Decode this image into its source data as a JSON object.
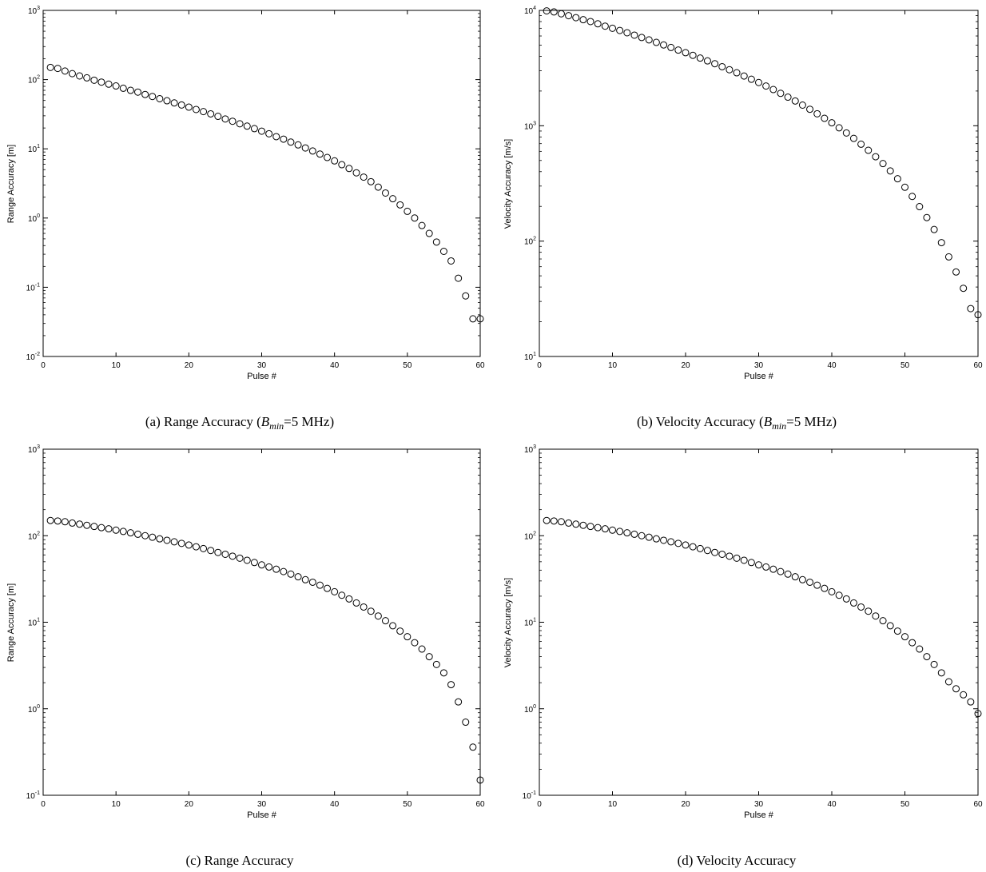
{
  "chart_data": [
    {
      "type": "scatter",
      "caption": "(a) Range Accuracy (",
      "caption_var": "B",
      "caption_sub": "min",
      "caption_tail": "=5 MHz)",
      "xlabel": "Pulse #",
      "ylabel": "Range Accuracy [m]",
      "xlim": [
        0,
        60
      ],
      "ylim": [
        0.01,
        1000
      ],
      "yscale": "log",
      "grid": false,
      "x_ticks": [
        "0",
        "10",
        "20",
        "30",
        "40",
        "50",
        "60"
      ],
      "y_ticks": [
        {
          "base": "10",
          "exp": "-2"
        },
        {
          "base": "10",
          "exp": "-1"
        },
        {
          "base": "10",
          "exp": "0"
        },
        {
          "base": "10",
          "exp": "1"
        },
        {
          "base": "10",
          "exp": "2"
        },
        {
          "base": "10",
          "exp": "3"
        }
      ],
      "marker": "open-circle",
      "x": [
        1,
        2,
        3,
        4,
        5,
        6,
        7,
        8,
        9,
        10,
        11,
        12,
        13,
        14,
        15,
        16,
        17,
        18,
        19,
        20,
        21,
        22,
        23,
        24,
        25,
        26,
        27,
        28,
        29,
        30,
        31,
        32,
        33,
        34,
        35,
        36,
        37,
        38,
        39,
        40,
        41,
        42,
        43,
        44,
        45,
        46,
        47,
        48,
        49,
        50,
        51,
        52,
        53,
        54,
        55,
        56,
        57,
        58,
        59,
        60
      ],
      "y": [
        150,
        145,
        133,
        122,
        113,
        106,
        98,
        92,
        86,
        81,
        75,
        70,
        66,
        61,
        57,
        53,
        49.5,
        46,
        43,
        40,
        37,
        34.5,
        32,
        29.5,
        27,
        25,
        23,
        21.3,
        19.6,
        18,
        16.5,
        15,
        13.8,
        12.5,
        11.4,
        10.3,
        9.3,
        8.4,
        7.5,
        6.7,
        5.9,
        5.2,
        4.5,
        3.9,
        3.35,
        2.8,
        2.3,
        1.9,
        1.55,
        1.25,
        1.0,
        0.78,
        0.6,
        0.45,
        0.33,
        0.24,
        0.135,
        0.075,
        0.035,
        0.035
      ]
    },
    {
      "type": "scatter",
      "caption": "(b) Velocity Accuracy (",
      "caption_var": "B",
      "caption_sub": "min",
      "caption_tail": "=5 MHz)",
      "xlabel": "Pulse #",
      "ylabel": "Velocity Accuracy [m/s]",
      "xlim": [
        0,
        60
      ],
      "ylim": [
        10,
        10000
      ],
      "yscale": "log",
      "grid": false,
      "x_ticks": [
        "0",
        "10",
        "20",
        "30",
        "40",
        "50",
        "60"
      ],
      "y_ticks": [
        {
          "base": "10",
          "exp": "1"
        },
        {
          "base": "10",
          "exp": "2"
        },
        {
          "base": "10",
          "exp": "3"
        },
        {
          "base": "10",
          "exp": "4"
        }
      ],
      "marker": "open-circle",
      "x": [
        1,
        2,
        3,
        4,
        5,
        6,
        7,
        8,
        9,
        10,
        11,
        12,
        13,
        14,
        15,
        16,
        17,
        18,
        19,
        20,
        21,
        22,
        23,
        24,
        25,
        26,
        27,
        28,
        29,
        30,
        31,
        32,
        33,
        34,
        35,
        36,
        37,
        38,
        39,
        40,
        41,
        42,
        43,
        44,
        45,
        46,
        47,
        48,
        49,
        50,
        51,
        52,
        53,
        54,
        55,
        56,
        57,
        58,
        59,
        60
      ],
      "y": [
        9900,
        9700,
        9350,
        9000,
        8650,
        8300,
        8000,
        7650,
        7300,
        7000,
        6700,
        6400,
        6100,
        5820,
        5550,
        5280,
        5020,
        4770,
        4530,
        4300,
        4080,
        3860,
        3650,
        3450,
        3250,
        3060,
        2880,
        2700,
        2530,
        2370,
        2210,
        2060,
        1910,
        1770,
        1640,
        1510,
        1390,
        1270,
        1160,
        1060,
        960,
        866,
        777,
        692,
        613,
        539,
        470,
        406,
        347,
        293,
        244,
        199,
        160,
        126,
        97,
        73,
        54,
        39,
        26,
        23
      ]
    },
    {
      "type": "scatter",
      "caption": "(c) Range Accuracy",
      "xlabel": "Pulse #",
      "ylabel": "Range Accuracy [m]",
      "xlim": [
        0,
        60
      ],
      "ylim": [
        0.1,
        1000
      ],
      "yscale": "log",
      "grid": false,
      "x_ticks": [
        "0",
        "10",
        "20",
        "30",
        "40",
        "50",
        "60"
      ],
      "y_ticks": [
        {
          "base": "10",
          "exp": "-1"
        },
        {
          "base": "10",
          "exp": "0"
        },
        {
          "base": "10",
          "exp": "1"
        },
        {
          "base": "10",
          "exp": "2"
        },
        {
          "base": "10",
          "exp": "3"
        }
      ],
      "marker": "open-circle",
      "x": [
        1,
        2,
        3,
        4,
        5,
        6,
        7,
        8,
        9,
        10,
        11,
        12,
        13,
        14,
        15,
        16,
        17,
        18,
        19,
        20,
        21,
        22,
        23,
        24,
        25,
        26,
        27,
        28,
        29,
        30,
        31,
        32,
        33,
        34,
        35,
        36,
        37,
        38,
        39,
        40,
        41,
        42,
        43,
        44,
        45,
        46,
        47,
        48,
        49,
        50,
        51,
        52,
        53,
        54,
        55,
        56,
        57,
        58,
        59,
        60
      ],
      "y": [
        150,
        148,
        145,
        140,
        136,
        132,
        128,
        124,
        120,
        116,
        112,
        108,
        104,
        100,
        96,
        92,
        88.5,
        85,
        81.5,
        78,
        74.5,
        71,
        67.5,
        64,
        61,
        58,
        55,
        52,
        49,
        46,
        43.5,
        41,
        38.5,
        36,
        33.5,
        31,
        29,
        26.8,
        24.6,
        22.5,
        20.5,
        18.6,
        16.7,
        15,
        13.4,
        11.8,
        10.4,
        9.1,
        7.9,
        6.8,
        5.8,
        4.9,
        4.0,
        3.25,
        2.6,
        1.9,
        1.2,
        0.7,
        0.36,
        0.15
      ]
    },
    {
      "type": "scatter",
      "caption": "(d) Velocity Accuracy",
      "xlabel": "Pulse #",
      "ylabel": "Velocity Accuracy [m/s]",
      "xlim": [
        0,
        60
      ],
      "ylim": [
        0.1,
        1000
      ],
      "yscale": "log",
      "grid": false,
      "x_ticks": [
        "0",
        "10",
        "20",
        "30",
        "40",
        "50",
        "60"
      ],
      "y_ticks": [
        {
          "base": "10",
          "exp": "-1"
        },
        {
          "base": "10",
          "exp": "0"
        },
        {
          "base": "10",
          "exp": "1"
        },
        {
          "base": "10",
          "exp": "2"
        },
        {
          "base": "10",
          "exp": "3"
        }
      ],
      "marker": "open-circle",
      "x": [
        1,
        2,
        3,
        4,
        5,
        6,
        7,
        8,
        9,
        10,
        11,
        12,
        13,
        14,
        15,
        16,
        17,
        18,
        19,
        20,
        21,
        22,
        23,
        24,
        25,
        26,
        27,
        28,
        29,
        30,
        31,
        32,
        33,
        34,
        35,
        36,
        37,
        38,
        39,
        40,
        41,
        42,
        43,
        44,
        45,
        46,
        47,
        48,
        49,
        50,
        51,
        52,
        53,
        54,
        55,
        56,
        57,
        58,
        59,
        60
      ],
      "y": [
        150,
        148,
        145,
        140,
        136,
        132,
        128,
        124,
        120,
        116,
        112,
        108,
        104,
        100,
        96,
        92,
        88.5,
        85,
        81.5,
        78,
        74.5,
        71,
        67.5,
        64,
        61,
        58,
        55,
        52,
        49,
        46,
        43.5,
        41,
        38.5,
        36,
        33.5,
        31,
        29,
        26.8,
        24.6,
        22.5,
        20.5,
        18.6,
        16.7,
        15,
        13.4,
        11.8,
        10.4,
        9.1,
        7.9,
        6.8,
        5.8,
        4.9,
        4.0,
        3.25,
        2.6,
        2.05,
        1.7,
        1.45,
        1.2,
        0.88
      ]
    }
  ]
}
